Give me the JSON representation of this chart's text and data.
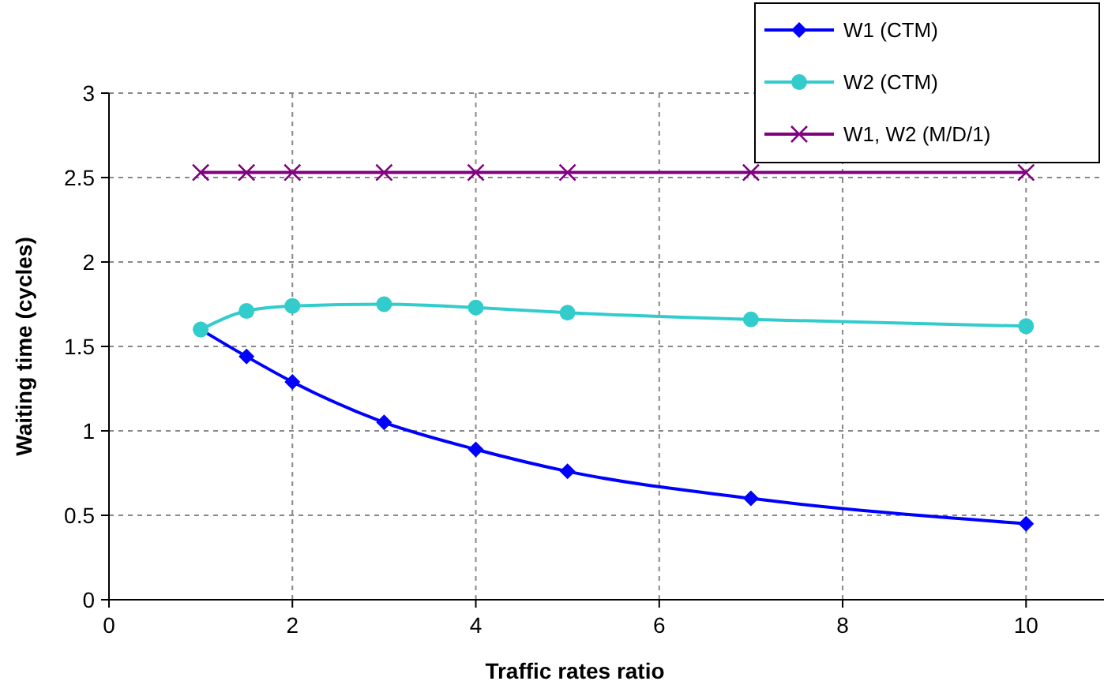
{
  "chart_data": {
    "type": "line",
    "xlabel": "Traffic rates ratio",
    "ylabel": "Waiting time (cycles)",
    "x": [
      1,
      1.5,
      2,
      3,
      4,
      5,
      7,
      10
    ],
    "xlim": [
      0,
      10.85
    ],
    "xticks": [
      0,
      2,
      4,
      6,
      8,
      10
    ],
    "ylim": [
      0,
      3
    ],
    "yticks": [
      0,
      0.5,
      1,
      1.5,
      2,
      2.5,
      3
    ],
    "grid": true,
    "legend": "top right",
    "line_style": "solid",
    "series": [
      {
        "name": "W1 (CTM)",
        "color": "#0000ff",
        "marker": "diamond",
        "values": [
          1.6,
          1.44,
          1.29,
          1.05,
          0.89,
          0.76,
          0.6,
          0.45
        ]
      },
      {
        "name": "W2 (CTM)",
        "color": "#33cccc",
        "marker": "circle",
        "values": [
          1.6,
          1.71,
          1.74,
          1.75,
          1.73,
          1.7,
          1.66,
          1.62
        ]
      },
      {
        "name": "W1, W2 (M/D/1)",
        "color": "#800080",
        "marker": "cross",
        "values": [
          2.53,
          2.53,
          2.53,
          2.53,
          2.53,
          2.53,
          2.53,
          2.53
        ]
      }
    ]
  }
}
